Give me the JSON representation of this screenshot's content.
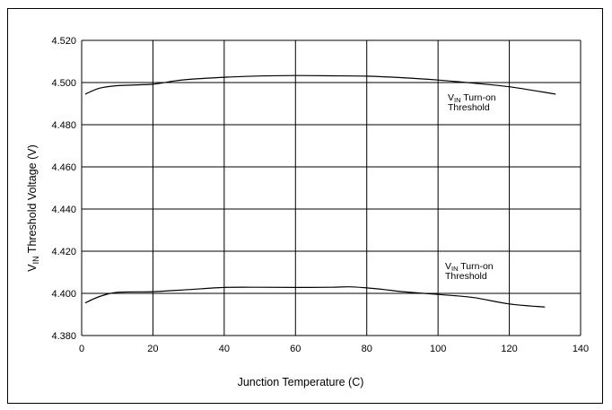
{
  "chart_data": {
    "type": "line",
    "xlabel": "Junction Temperature (C)",
    "ylabel_main": "V",
    "ylabel_sub": "IN",
    "ylabel_rest": " Threshold Voltage (V)",
    "xlim": [
      0,
      140
    ],
    "ylim": [
      4.38,
      4.52
    ],
    "xticks": [
      "0",
      "20",
      "40",
      "60",
      "80",
      "100",
      "120",
      "140"
    ],
    "yticks": [
      "4.380",
      "4.400",
      "4.420",
      "4.440",
      "4.460",
      "4.480",
      "4.500",
      "4.520"
    ],
    "grid": true,
    "series": [
      {
        "label_main": "V",
        "label_sub": "IN",
        "label_rest": " Turn-on",
        "label_line2": "Threshold",
        "x": [
          1,
          5,
          10,
          20,
          25,
          30,
          40,
          50,
          60,
          70,
          80,
          90,
          100,
          110,
          120,
          133
        ],
        "y": [
          4.4945,
          4.4973,
          4.4985,
          4.4992,
          4.5005,
          4.5015,
          4.5025,
          4.5031,
          4.5033,
          4.5032,
          4.503,
          4.5023,
          4.5012,
          4.4997,
          4.498,
          4.4945
        ]
      },
      {
        "label_main": "V",
        "label_sub": "IN",
        "label_rest": " Turn-on",
        "label_line2": "Threshold",
        "x": [
          1,
          5,
          10,
          20,
          30,
          40,
          50,
          60,
          70,
          75,
          80,
          85,
          90,
          100,
          110,
          120,
          130
        ],
        "y": [
          4.3955,
          4.3985,
          4.4005,
          4.4008,
          4.4018,
          4.4028,
          4.4029,
          4.4028,
          4.4029,
          4.4031,
          4.4026,
          4.4018,
          4.4008,
          4.3995,
          4.398,
          4.395,
          4.3935
        ]
      }
    ]
  }
}
